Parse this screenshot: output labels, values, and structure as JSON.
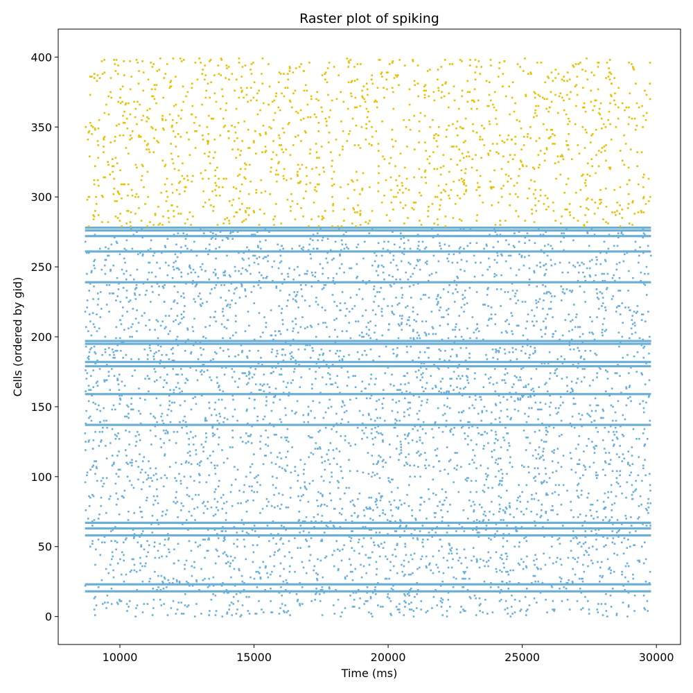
{
  "chart_data": {
    "type": "scatter",
    "title": "Raster plot of spiking",
    "xlabel": "Time (ms)",
    "ylabel": "Cells (ordered by gid)",
    "xlim": [
      7700,
      30900
    ],
    "ylim": [
      -20,
      420
    ],
    "xticks": [
      10000,
      15000,
      20000,
      25000,
      30000
    ],
    "yticks": [
      0,
      50,
      100,
      150,
      200,
      250,
      300,
      350,
      400
    ],
    "xtick_labels": [
      "10000",
      "15000",
      "20000",
      "25000",
      "30000"
    ],
    "ytick_labels": [
      "0",
      "50",
      "100",
      "150",
      "200",
      "250",
      "300",
      "350",
      "400"
    ],
    "grid": false,
    "legend": "none",
    "time_range_ms": [
      8700,
      29800
    ],
    "series": [
      {
        "gid_range": [
          0,
          278
        ],
        "color": "#6baed6",
        "approx_spikes": 4500,
        "high_rate_cells": [
          18,
          23,
          58,
          63,
          67,
          137,
          159,
          179,
          182,
          195,
          197,
          239,
          261,
          272,
          276,
          278
        ]
      },
      {
        "gid_range": [
          279,
          399
        ],
        "color": "#e5c100",
        "approx_spikes": 1500,
        "high_rate_cells": []
      }
    ]
  }
}
